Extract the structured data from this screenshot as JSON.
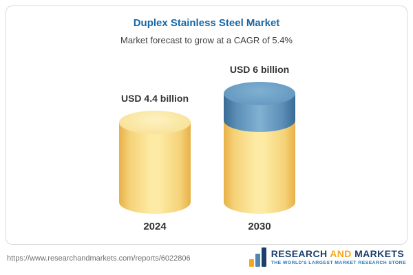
{
  "chart_data": {
    "type": "bar",
    "title": "Duplex Stainless Steel Market",
    "subtitle": "Market forecast to grow at a CAGR of 5.4%",
    "cagr": "5.4%",
    "categories": [
      "2024",
      "2030"
    ],
    "values": [
      4.4,
      6
    ],
    "unit": "USD billion",
    "value_labels": [
      "USD 4.4 billion",
      "USD 6 billion"
    ],
    "ylim": [
      0,
      6
    ],
    "legend_position": "none",
    "grid": false,
    "colors": {
      "bar_2024": "#f5d279",
      "bar_2030_base": "#f5d279",
      "bar_2030_growth": "#5b8fb7",
      "title": "#1667a7"
    }
  },
  "footer": {
    "url": "https://www.researchandmarkets.com/reports/6022806",
    "brand": {
      "part1": "RESEARCH",
      "part2": "AND",
      "part3": "MARKETS",
      "tagline": "THE WORLD'S LARGEST MARKET RESEARCH STORE"
    }
  }
}
